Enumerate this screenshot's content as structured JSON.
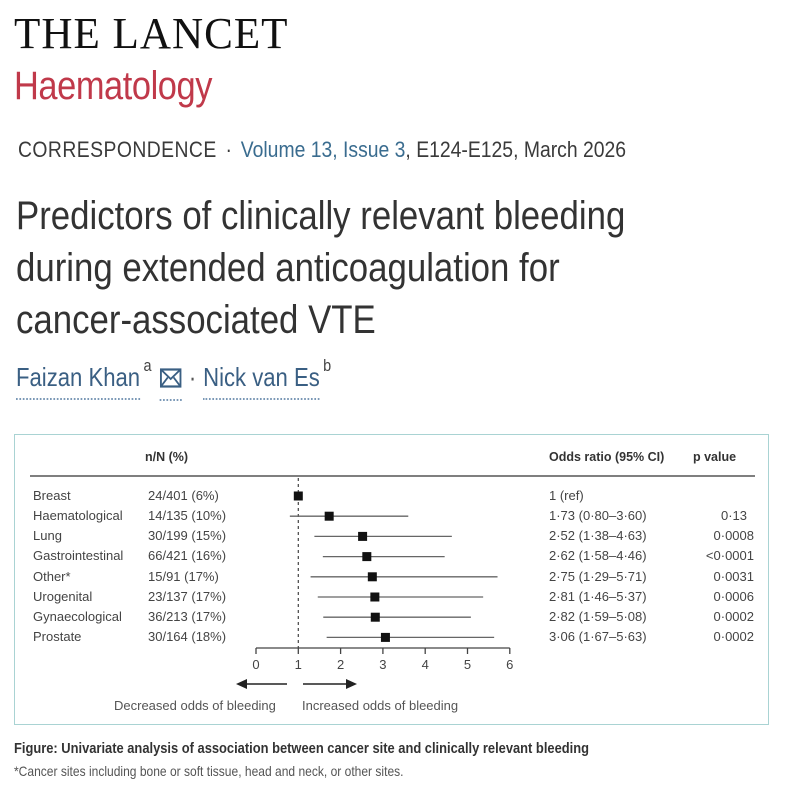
{
  "journal": {
    "name": "THE LANCET",
    "subtitle": "Haematology",
    "brand_color": "#c0394a"
  },
  "meta": {
    "article_type": "CORRESPONDENCE",
    "separator": "·",
    "volume_issue": "Volume 13, Issue 3",
    "pages_date": ", E124-E125, March 2026"
  },
  "article": {
    "title_lines": [
      "Predictors of clinically relevant bleeding",
      "during extended anticoagulation for",
      "cancer-associated VTE"
    ]
  },
  "authors": [
    {
      "name": "Faizan Khan",
      "affiliation": "a",
      "has_email": true
    },
    {
      "name": "Nick van Es",
      "affiliation": "b",
      "has_email": false
    }
  ],
  "author_separator": "·",
  "figure": {
    "headers": {
      "nN": "n/N (%)",
      "or": "Odds ratio (95% CI)",
      "p": "p value"
    },
    "rows": [
      {
        "site": "Breast",
        "nN": "24/401 (6%)",
        "or_text": "1 (ref)",
        "p": ""
      },
      {
        "site": "Haematological",
        "nN": "14/135 (10%)",
        "or_text": "1·73 (0·80–3·60)",
        "p": "0·13"
      },
      {
        "site": "Lung",
        "nN": "30/199 (15%)",
        "or_text": "2·52 (1·38–4·63)",
        "p": "0·0008"
      },
      {
        "site": "Gastrointestinal",
        "nN": "66/421 (16%)",
        "or_text": "2·62 (1·58–4·46)",
        "p": "<0·0001"
      },
      {
        "site": "Other*",
        "nN": "15/91 (17%)",
        "or_text": "2·75 (1·29–5·71)",
        "p": "0·0031"
      },
      {
        "site": "Urogenital",
        "nN": "23/137 (17%)",
        "or_text": "2·81 (1·46–5·37)",
        "p": "0·0006"
      },
      {
        "site": "Gynaecological",
        "nN": "36/213 (17%)",
        "or_text": "2·82 (1·59–5·08)",
        "p": "0·0002"
      },
      {
        "site": "Prostate",
        "nN": "30/164 (18%)",
        "or_text": "3·06 (1·67–5·63)",
        "p": "0·0002"
      }
    ],
    "caption": "Figure: Univariate analysis of association between cancer site and clinically relevant bleeding",
    "footnote": "*Cancer sites including bone or soft tissue, head and neck, or other sites.",
    "box_border_color": "#a9d3d3"
  },
  "chart_data": {
    "type": "forest",
    "title": "Univariate analysis of association between cancer site and clinically relevant bleeding",
    "categories": [
      "Breast",
      "Haematological",
      "Lung",
      "Gastrointestinal",
      "Other*",
      "Urogenital",
      "Gynaecological",
      "Prostate"
    ],
    "values": [
      1.0,
      1.73,
      2.52,
      2.62,
      2.75,
      2.81,
      2.82,
      3.06
    ],
    "ci_lower": [
      null,
      0.8,
      1.38,
      1.58,
      1.29,
      1.46,
      1.59,
      1.67
    ],
    "ci_upper": [
      null,
      3.6,
      4.63,
      4.46,
      5.71,
      5.37,
      5.08,
      5.63
    ],
    "p_values": [
      null,
      "0·13",
      "0·0008",
      "<0·0001",
      "0·0031",
      "0·0006",
      "0·0002",
      "0·0002"
    ],
    "counts": [
      "24/401 (6%)",
      "14/135 (10%)",
      "30/199 (15%)",
      "66/421 (16%)",
      "15/91 (17%)",
      "23/137 (17%)",
      "36/213 (17%)",
      "30/164 (18%)"
    ],
    "xlabel": "Odds ratio",
    "xticks": [
      0,
      1,
      2,
      3,
      4,
      5,
      6
    ],
    "xlim": [
      0,
      6
    ],
    "reference_line": 1,
    "left_arrow_label": "Decreased odds of bleeding",
    "right_arrow_label": "Increased odds of bleeding",
    "grid": false
  }
}
